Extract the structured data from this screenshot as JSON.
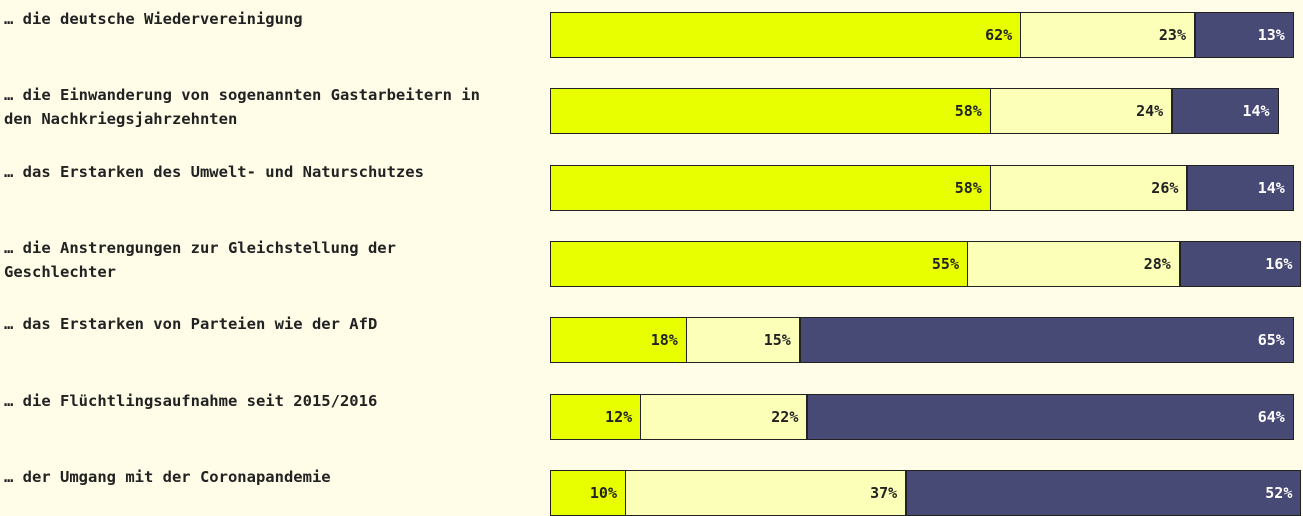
{
  "chart_data": {
    "type": "stacked-bar",
    "categories": [
      "… die deutsche Wiedervereinigung",
      "… die Einwanderung von sogenannten Gastarbeitern in den Nachkriegsjahrzehnten",
      "… das Erstarken des Umwelt- und Naturschutzes",
      "… die Anstrengungen zur Gleichstellung der Geschlechter",
      "… das Erstarken von Parteien wie der AfD",
      "… die Flüchtlingsaufnahme seit 2015/2016",
      "… der Umgang mit der Coronapandemie"
    ],
    "series": [
      {
        "color": "#e8ff00",
        "values": [
          62,
          58,
          58,
          55,
          18,
          12,
          10
        ],
        "value_labels": [
          "62%",
          "58%",
          "58%",
          "55%",
          "18%",
          "12%",
          "10%"
        ]
      },
      {
        "color": "#fbffb8",
        "values": [
          23,
          24,
          26,
          28,
          15,
          22,
          37
        ],
        "value_labels": [
          "23%",
          "24%",
          "26%",
          "28%",
          "15%",
          "22%",
          "37%"
        ]
      },
      {
        "color": "#474a75",
        "values": [
          13,
          14,
          14,
          16,
          65,
          64,
          52
        ],
        "value_labels": [
          "13%",
          "14%",
          "14%",
          "16%",
          "65%",
          "64%",
          "52%"
        ]
      }
    ]
  }
}
